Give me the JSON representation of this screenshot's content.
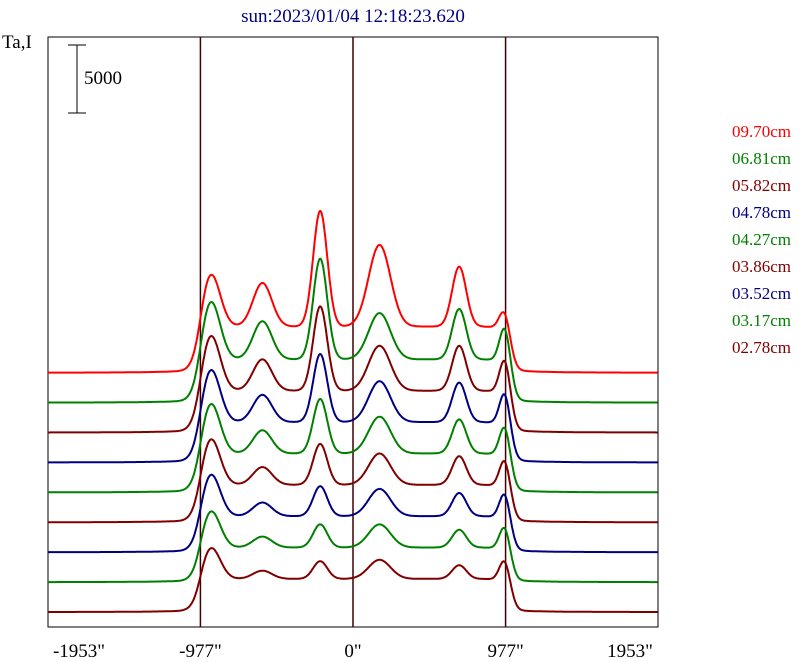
{
  "chart_data": {
    "type": "line",
    "title": "sun:2023/01/04 12:18:23.620",
    "ylabel": "Ta,I",
    "scale_bar_label": "5000",
    "x_ticks": [
      "-1953\"",
      "-977\"",
      "0\"",
      "977\"",
      "1953\""
    ],
    "xlim": [
      -1953,
      1953
    ],
    "vertical_lines": [
      -977,
      0,
      977
    ],
    "trace_offset_step": 2200,
    "grid": false,
    "legend_position": "right",
    "peaks_x": [
      -912,
      -580,
      -210,
      170,
      680,
      977
    ],
    "peaks_width": [
      60,
      60,
      45,
      70,
      45,
      35
    ],
    "series": [
      {
        "name": "09.70cm",
        "color": "#ff0000",
        "base": 0,
        "plateau": 3200,
        "amps": [
          4000,
          3200,
          8500,
          6000,
          4400,
          2400
        ]
      },
      {
        "name": "06.81cm",
        "color": "#008000",
        "base": 8,
        "plateau": 3000,
        "amps": [
          4400,
          2800,
          7400,
          3400,
          3700,
          3600
        ]
      },
      {
        "name": "05.82cm",
        "color": "#800000",
        "base": 16,
        "plateau": 2900,
        "amps": [
          4200,
          2300,
          6200,
          3300,
          3300,
          3500
        ]
      },
      {
        "name": "04.78cm",
        "color": "#000080",
        "base": 24,
        "plateau": 2800,
        "amps": [
          4000,
          2000,
          5000,
          3000,
          2900,
          3300
        ]
      },
      {
        "name": "04.27cm",
        "color": "#008000",
        "base": 32,
        "plateau": 2700,
        "amps": [
          3800,
          1700,
          4000,
          2700,
          2500,
          3100
        ]
      },
      {
        "name": "03.86cm",
        "color": "#800000",
        "base": 40,
        "plateau": 2600,
        "amps": [
          3500,
          1300,
          3000,
          2300,
          2100,
          2900
        ]
      },
      {
        "name": "03.52cm",
        "color": "#000080",
        "base": 48,
        "plateau": 2500,
        "amps": [
          3200,
          1000,
          2200,
          2000,
          1700,
          2700
        ]
      },
      {
        "name": "03.17cm",
        "color": "#008000",
        "base": 56,
        "plateau": 2400,
        "amps": [
          2800,
          800,
          1700,
          1700,
          1300,
          2500
        ]
      },
      {
        "name": "02.78cm",
        "color": "#800000",
        "base": 64,
        "plateau": 2300,
        "amps": [
          2400,
          600,
          1300,
          1400,
          1000,
          2300
        ]
      }
    ]
  }
}
